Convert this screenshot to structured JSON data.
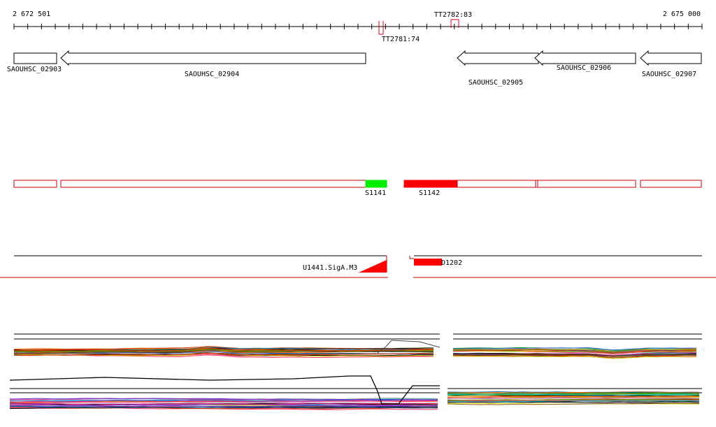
{
  "ruler": {
    "start_label": "2 672 501",
    "end_label": "2 675 000",
    "terminators": [
      {
        "label": "TT2782:83",
        "color": "#d9001b"
      },
      {
        "label": "TT2781:74",
        "color": "#d9001b"
      }
    ]
  },
  "genes": [
    {
      "name": "SAOUHSC_02903",
      "strand": "+"
    },
    {
      "name": "SAOUHSC_02904",
      "strand": "-"
    },
    {
      "name": "SAOUHSC_02905",
      "strand": "-"
    },
    {
      "name": "SAOUHSC_02906",
      "strand": "-"
    },
    {
      "name": "SAOUHSC_02907",
      "strand": "-"
    }
  ],
  "segments": [
    {
      "label": "S1141",
      "color": "#00ee00"
    },
    {
      "label": "S1142",
      "color": "#ff0000"
    }
  ],
  "segment_outline_color": "#cc0000",
  "promoter": {
    "label": "U1441.SigA.M3",
    "color": "#ff0000"
  },
  "downshift": {
    "label": "D1202",
    "color": "#ff0000"
  },
  "divider_color": "#cc0000",
  "expression_palette": [
    "#000000",
    "#cc3300",
    "#ff6600",
    "#996633",
    "#cc9900",
    "#669900",
    "#009933",
    "#006699",
    "#3366cc",
    "#6633cc",
    "#cc3399",
    "#ff3366",
    "#999999",
    "#00cccc",
    "#cccc00",
    "#663300"
  ]
}
